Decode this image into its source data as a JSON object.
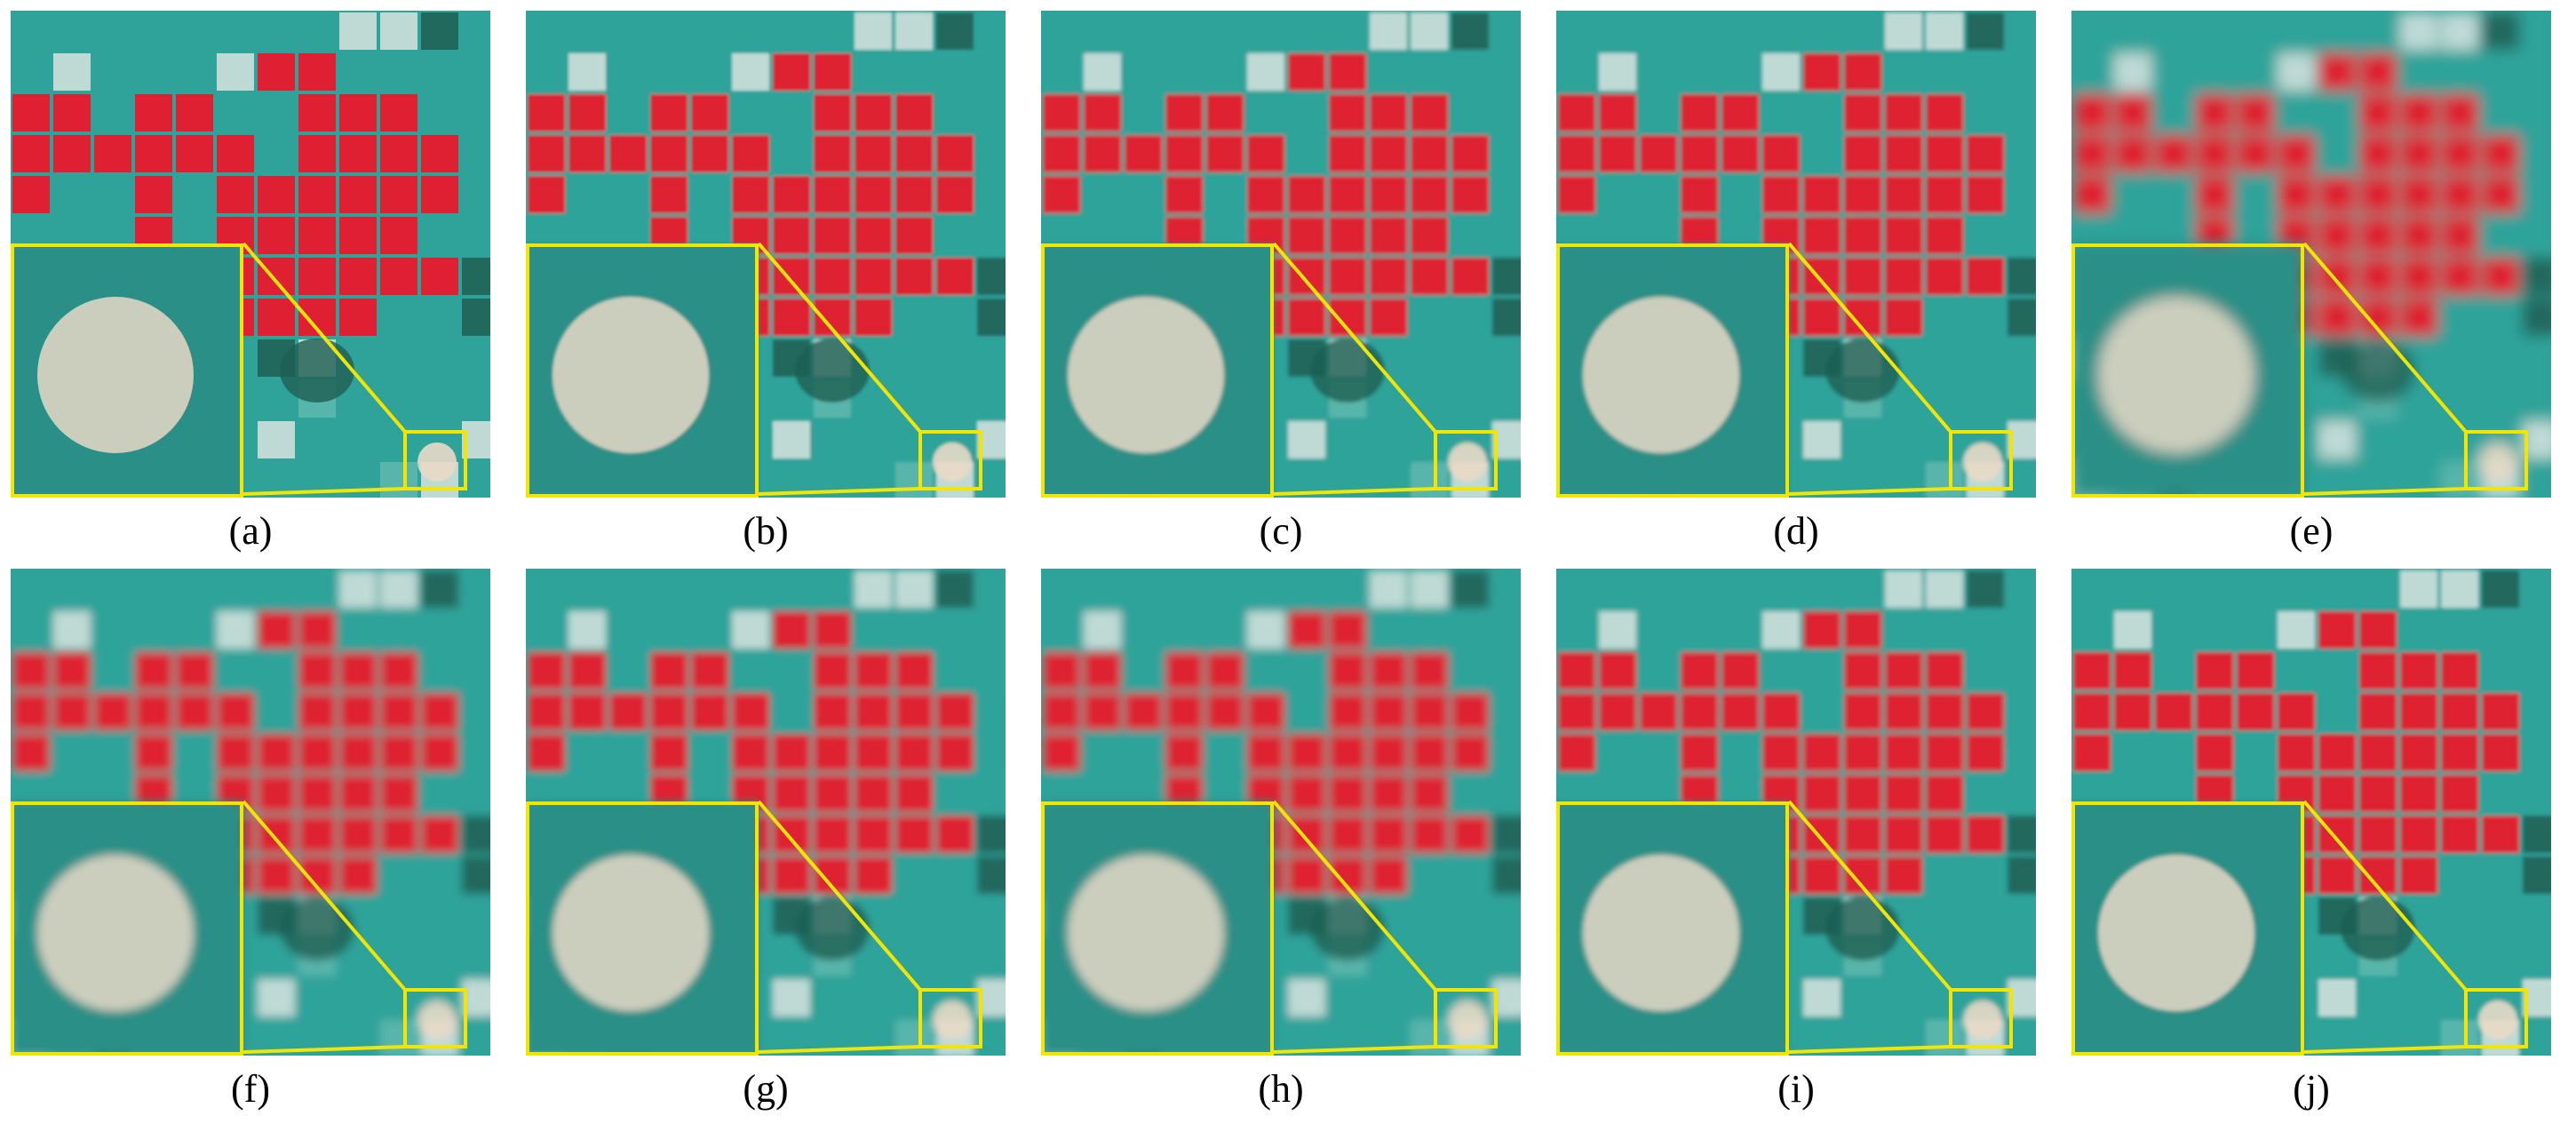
{
  "figure": {
    "panels": [
      {
        "id": "a",
        "caption": "(a)",
        "blur": 0
      },
      {
        "id": "b",
        "caption": "(b)",
        "blur": 1.5
      },
      {
        "id": "c",
        "caption": "(c)",
        "blur": 2
      },
      {
        "id": "d",
        "caption": "(d)",
        "blur": 2
      },
      {
        "id": "e",
        "caption": "(e)",
        "blur": 8
      },
      {
        "id": "f",
        "caption": "(f)",
        "blur": 5
      },
      {
        "id": "g",
        "caption": "(g)",
        "blur": 4
      },
      {
        "id": "h",
        "caption": "(h)",
        "blur": 5
      },
      {
        "id": "i",
        "caption": "(i)",
        "blur": 3
      },
      {
        "id": "j",
        "caption": "(j)",
        "blur": 2
      }
    ],
    "colors": {
      "background_cyan": "#2fa39a",
      "vegetation_red": "#e8192c",
      "bare_soil_white": "#d8e4df",
      "dark_field": "#1f5e52",
      "zoom_box_yellow": "#f2e600",
      "inset_background": "#2a8f86",
      "circle_field": "#e9d9c7"
    }
  }
}
